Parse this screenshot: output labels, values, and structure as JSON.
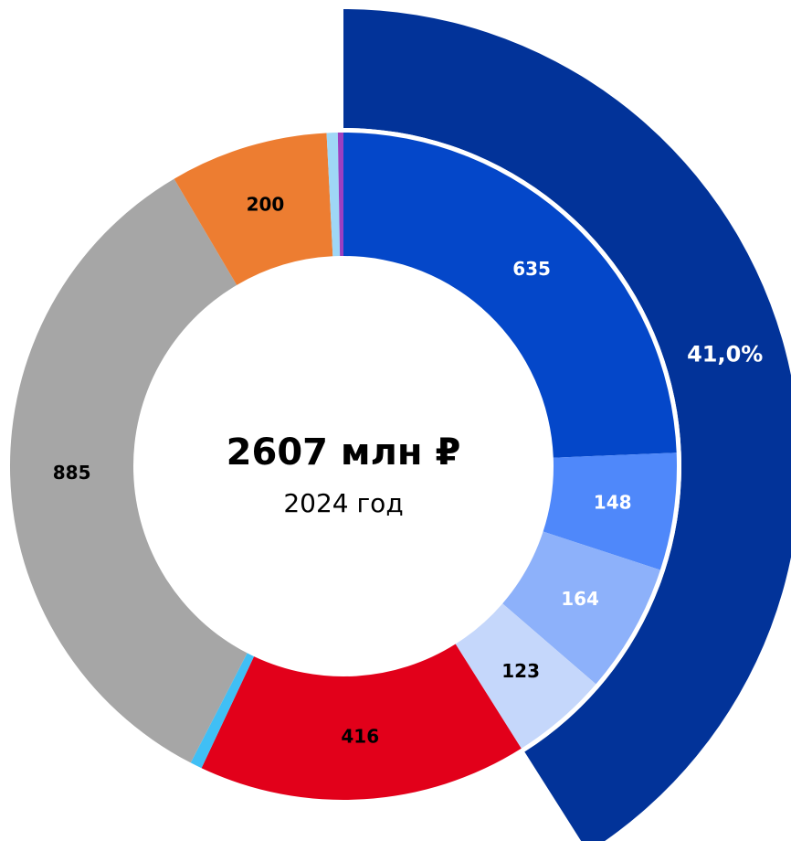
{
  "chart_data": {
    "type": "donut",
    "title": "2607 млн ₽",
    "subtitle": "2024 год",
    "categories": [
      null,
      null,
      null,
      null,
      null,
      null,
      null,
      null,
      null,
      null
    ],
    "values": [
      635,
      148,
      164,
      123,
      416,
      15,
      885,
      200,
      14,
      7
    ],
    "colors": [
      "#0447c9",
      "#4f88fa",
      "#8db1fa",
      "#c5d7fb",
      "#e2001a",
      "#40bff5",
      "#a6a6a6",
      "#ed7d31",
      "#9fd7f6",
      "#9b3fc0"
    ],
    "label_colors": [
      "#ffffff",
      "#ffffff",
      "#ffffff",
      "#000000",
      "#000000",
      null,
      "#000000",
      "#000000",
      null,
      null
    ],
    "highlight": {
      "value": 41.0,
      "label": "41,0%",
      "color": "#023399"
    }
  }
}
